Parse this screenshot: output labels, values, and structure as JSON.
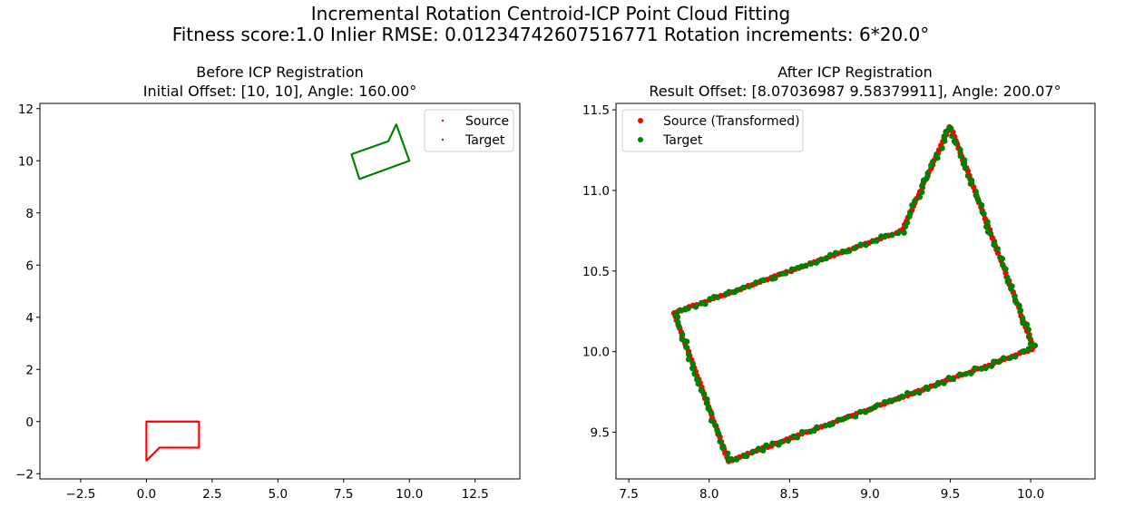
{
  "figure": {
    "title_line1": "Incremental Rotation Centroid-ICP Point Cloud Fitting",
    "title_line2": "Fitness score:1.0   Inlier RMSE: 0.01234742607516771  Rotation increments: 6*20.0°",
    "colors": {
      "source": "#ff0000",
      "target": "#008000",
      "axes": "#000000",
      "legend_border": "#cccccc"
    }
  },
  "chart_data": [
    {
      "type": "scatter",
      "title_line1": "Before ICP Registration",
      "title_line2": "Initial Offset: [10, 10], Angle: 160.00°",
      "xlim": [
        -4.05,
        14.2
      ],
      "ylim": [
        -2.2,
        12.2
      ],
      "xticks": [
        -2.5,
        0.0,
        2.5,
        5.0,
        7.5,
        10.0,
        12.5
      ],
      "yticks": [
        -2,
        0,
        2,
        4,
        6,
        8,
        10,
        12
      ],
      "xtick_labels": [
        "−2.5",
        "0.0",
        "2.5",
        "5.0",
        "7.5",
        "10.0",
        "12.5"
      ],
      "ytick_labels": [
        "−2",
        "0",
        "2",
        "4",
        "6",
        "8",
        "10",
        "12"
      ],
      "legend_position": "upper right",
      "grid": false,
      "series": [
        {
          "name": "Source",
          "color": "#ff0000",
          "vertices": [
            [
              0,
              0
            ],
            [
              2,
              0
            ],
            [
              2,
              -1
            ],
            [
              0.5,
              -1
            ],
            [
              0,
              -1.5
            ],
            [
              0,
              0
            ]
          ],
          "point_count": 240
        },
        {
          "name": "Target",
          "color": "#008000",
          "vertices": [
            [
              7.8,
              10.25
            ],
            [
              9.2,
              10.75
            ],
            [
              9.5,
              11.4
            ],
            [
              10.0,
              10.0
            ],
            [
              8.1,
              9.3
            ],
            [
              7.8,
              10.25
            ]
          ],
          "point_count": 200
        }
      ]
    },
    {
      "type": "scatter",
      "title_line1": "After ICP Registration",
      "title_line2": "Result Offset: [8.07036987 9.58379911], Angle: 200.07°",
      "xlim": [
        7.42,
        10.4
      ],
      "ylim": [
        9.21,
        11.54
      ],
      "xticks": [
        7.5,
        8.0,
        8.5,
        9.0,
        9.5,
        10.0
      ],
      "yticks": [
        9.5,
        10.0,
        10.5,
        11.0,
        11.5
      ],
      "xtick_labels": [
        "7.5",
        "8.0",
        "8.5",
        "9.0",
        "9.5",
        "10.0"
      ],
      "ytick_labels": [
        "9.5",
        "10.0",
        "10.5",
        "11.0",
        "11.5"
      ],
      "legend_position": "upper left",
      "grid": false,
      "series": [
        {
          "name": "Source (Transformed)",
          "color": "#ff0000",
          "vertices": [
            [
              7.78,
              10.24
            ],
            [
              9.2,
              10.75
            ],
            [
              9.5,
              11.4
            ],
            [
              10.02,
              10.02
            ],
            [
              8.12,
              9.32
            ],
            [
              7.78,
              10.24
            ]
          ],
          "point_count": 260
        },
        {
          "name": "Target",
          "color": "#008000",
          "vertices": [
            [
              7.78,
              10.24
            ],
            [
              9.2,
              10.75
            ],
            [
              9.5,
              11.4
            ],
            [
              10.02,
              10.02
            ],
            [
              8.12,
              9.32
            ],
            [
              7.78,
              10.24
            ]
          ],
          "point_count": 200
        }
      ]
    }
  ]
}
